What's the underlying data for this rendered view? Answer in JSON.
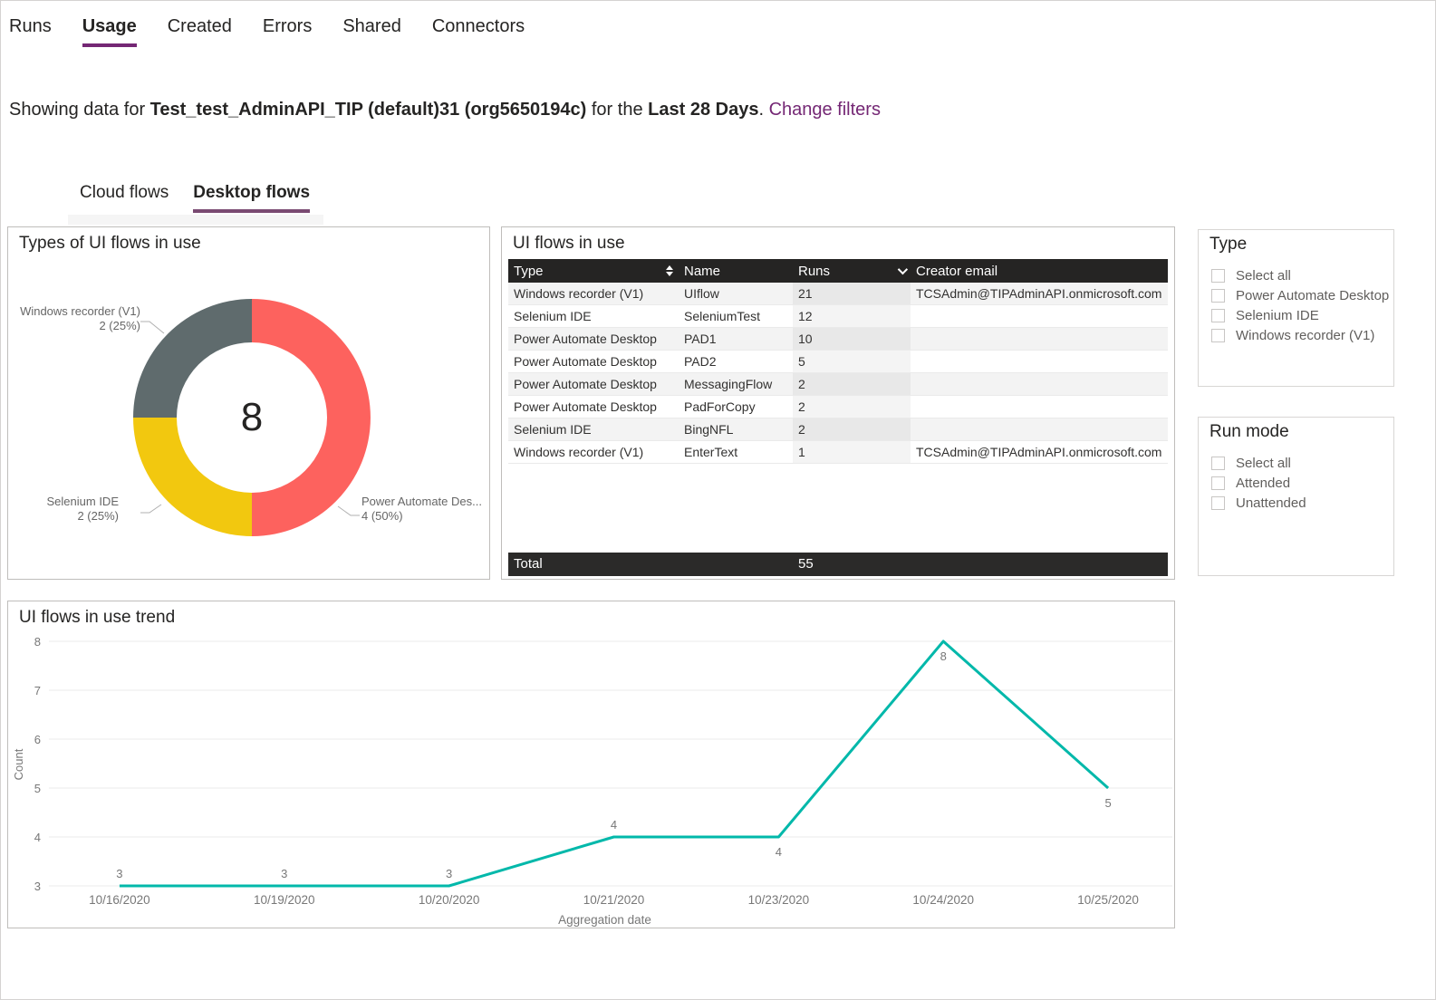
{
  "top_tabs": {
    "items": [
      {
        "label": "Runs",
        "active": false
      },
      {
        "label": "Usage",
        "active": true
      },
      {
        "label": "Created",
        "active": false
      },
      {
        "label": "Errors",
        "active": false
      },
      {
        "label": "Shared",
        "active": false
      },
      {
        "label": "Connectors",
        "active": false
      }
    ]
  },
  "filter_bar": {
    "prefix": "Showing data for",
    "entity": "Test_test_AdminAPI_TIP (default)31 (org5650194c)",
    "middle": "for the",
    "range": "Last 28 Days",
    "period": ".",
    "link_label": "Change filters",
    "link_color": "#742774"
  },
  "flow_tabs": {
    "items": [
      {
        "label": "Cloud flows",
        "active": false
      },
      {
        "label": "Desktop flows",
        "active": true
      }
    ]
  },
  "table_card": {
    "title": "UI flows in use",
    "columns": [
      {
        "label": "Type",
        "sort_icon": "sort-both-icon"
      },
      {
        "label": "Name",
        "sort_icon": ""
      },
      {
        "label": "Runs",
        "sort_icon": "chevron-down-icon"
      },
      {
        "label": "Creator email",
        "sort_icon": ""
      }
    ],
    "rows": [
      {
        "type": "Windows recorder (V1)",
        "name": "UIflow",
        "runs": "21",
        "creator_email": "TCSAdmin@TIPAdminAPI.onmicrosoft.com"
      },
      {
        "type": "Selenium IDE",
        "name": "SeleniumTest",
        "runs": "12",
        "creator_email": ""
      },
      {
        "type": "Power Automate Desktop",
        "name": "PAD1",
        "runs": "10",
        "creator_email": ""
      },
      {
        "type": "Power Automate Desktop",
        "name": "PAD2",
        "runs": "5",
        "creator_email": ""
      },
      {
        "type": "Power Automate Desktop",
        "name": "MessagingFlow",
        "runs": "2",
        "creator_email": ""
      },
      {
        "type": "Power Automate Desktop",
        "name": "PadForCopy",
        "runs": "2",
        "creator_email": ""
      },
      {
        "type": "Selenium IDE",
        "name": "BingNFL",
        "runs": "2",
        "creator_email": ""
      },
      {
        "type": "Windows recorder (V1)",
        "name": "EnterText",
        "runs": "1",
        "creator_email": "TCSAdmin@TIPAdminAPI.onmicrosoft.com"
      }
    ],
    "total_label": "Total",
    "total_runs": "55",
    "header_bg": "#252423"
  },
  "filters": {
    "type_panel": {
      "title": "Type",
      "options": [
        "Select all",
        "Power Automate Desktop",
        "Selenium IDE",
        "Windows recorder (V1)"
      ]
    },
    "run_mode_panel": {
      "title": "Run mode",
      "options": [
        "Select all",
        "Attended",
        "Unattended"
      ]
    }
  },
  "chart_data": [
    {
      "type": "pie",
      "title": "Types of UI flows in use",
      "center_total": "8",
      "total": 8,
      "slices": [
        {
          "label": "Power Automate Desktop",
          "display_label": "Power Automate Des...",
          "value": 4,
          "value_label": "4 (50%)",
          "color": "#FD625E"
        },
        {
          "label": "Selenium IDE",
          "display_label": "Selenium IDE",
          "value": 2,
          "value_label": "2 (25%)",
          "color": "#F2C80F"
        },
        {
          "label": "Windows recorder (V1)",
          "display_label": "Windows recorder (V1)",
          "value": 2,
          "value_label": "2 (25%)",
          "color": "#5F6B6D"
        }
      ]
    },
    {
      "type": "line",
      "title": "UI flows in use trend",
      "x": [
        "10/16/2020",
        "10/19/2020",
        "10/20/2020",
        "10/21/2020",
        "10/23/2020",
        "10/24/2020",
        "10/25/2020"
      ],
      "values": [
        3,
        3,
        3,
        4,
        4,
        8,
        5
      ],
      "labels": [
        "3",
        "3",
        "3",
        "4",
        "4",
        "8",
        "5"
      ],
      "label_positions": [
        "above",
        "above",
        "above",
        "above",
        "below",
        "below",
        "below"
      ],
      "xlabel": "Aggregation date",
      "ylabel": "Count",
      "ylim": [
        3,
        8
      ],
      "yticks": [
        3,
        4,
        5,
        6,
        7,
        8
      ],
      "line_color": "#01B8AA",
      "grid": "horizontal",
      "legend": "none"
    }
  ]
}
